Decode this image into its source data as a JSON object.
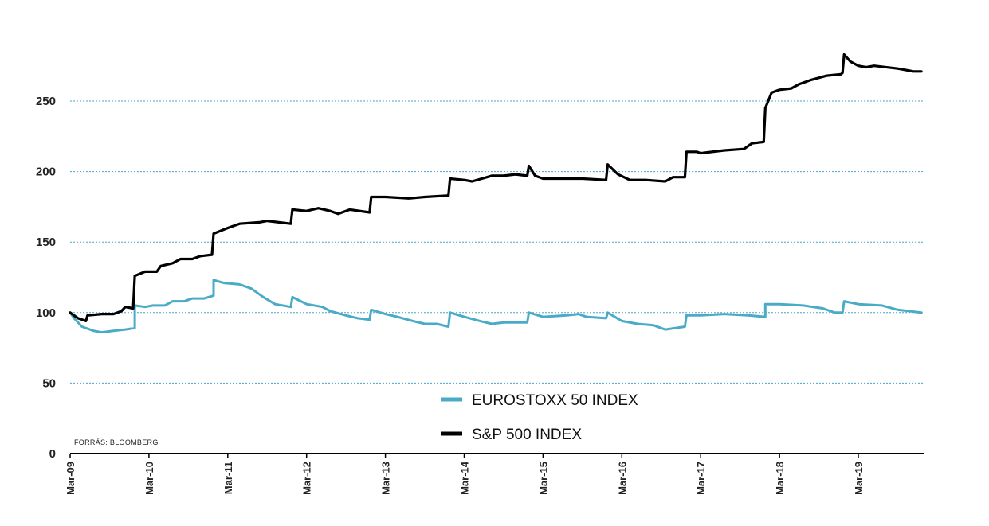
{
  "chart_data": {
    "type": "line",
    "title": "",
    "xlabel": "",
    "ylabel": "",
    "source": "FORRÁS: BLOOMBERG",
    "ylim": [
      0,
      290
    ],
    "yticks": [
      0,
      50,
      100,
      150,
      200,
      250
    ],
    "xlim": [
      2009.0,
      2019.85
    ],
    "xticks": [
      {
        "label": "Mar-09",
        "x": 2009.0
      },
      {
        "label": "Mar-10",
        "x": 2010.0
      },
      {
        "label": "Mar-11",
        "x": 2011.0
      },
      {
        "label": "Mar-12",
        "x": 2012.0
      },
      {
        "label": "Mar-13",
        "x": 2013.0
      },
      {
        "label": "Mar-14",
        "x": 2014.0
      },
      {
        "label": "Mar-15",
        "x": 2015.0
      },
      {
        "label": "Mar-16",
        "x": 2016.0
      },
      {
        "label": "Mar-17",
        "x": 2017.0
      },
      {
        "label": "Mar-18",
        "x": 2018.0
      },
      {
        "label": "Mar-19",
        "x": 2019.0
      }
    ],
    "grid": "horizontal-dotted",
    "legend_position": "bottom-center",
    "series": [
      {
        "name": "EUROSTOXX 50 INDEX",
        "color": "#4aabc7",
        "points": [
          [
            2009.0,
            100
          ],
          [
            2009.05,
            96
          ],
          [
            2009.15,
            90
          ],
          [
            2009.3,
            87
          ],
          [
            2009.4,
            86
          ],
          [
            2009.55,
            87
          ],
          [
            2009.7,
            88
          ],
          [
            2009.82,
            89
          ],
          [
            2009.82,
            105
          ],
          [
            2009.95,
            104
          ],
          [
            2010.05,
            105
          ],
          [
            2010.2,
            105
          ],
          [
            2010.3,
            108
          ],
          [
            2010.45,
            108
          ],
          [
            2010.55,
            110
          ],
          [
            2010.7,
            110
          ],
          [
            2010.82,
            112
          ],
          [
            2010.82,
            123
          ],
          [
            2010.95,
            121
          ],
          [
            2011.15,
            120
          ],
          [
            2011.3,
            117
          ],
          [
            2011.45,
            111
          ],
          [
            2011.6,
            106
          ],
          [
            2011.8,
            104
          ],
          [
            2011.82,
            111
          ],
          [
            2012.0,
            106
          ],
          [
            2012.2,
            104
          ],
          [
            2012.3,
            101
          ],
          [
            2012.5,
            98
          ],
          [
            2012.65,
            96
          ],
          [
            2012.8,
            95
          ],
          [
            2012.82,
            102
          ],
          [
            2013.0,
            99
          ],
          [
            2013.15,
            97
          ],
          [
            2013.35,
            94
          ],
          [
            2013.5,
            92
          ],
          [
            2013.65,
            92
          ],
          [
            2013.8,
            90
          ],
          [
            2013.82,
            100
          ],
          [
            2014.0,
            97
          ],
          [
            2014.2,
            94
          ],
          [
            2014.35,
            92
          ],
          [
            2014.5,
            93
          ],
          [
            2014.8,
            93
          ],
          [
            2014.82,
            100
          ],
          [
            2015.0,
            97
          ],
          [
            2015.3,
            98
          ],
          [
            2015.45,
            99
          ],
          [
            2015.55,
            97
          ],
          [
            2015.8,
            96
          ],
          [
            2015.82,
            100
          ],
          [
            2016.0,
            94
          ],
          [
            2016.2,
            92
          ],
          [
            2016.4,
            91
          ],
          [
            2016.55,
            88
          ],
          [
            2016.8,
            90
          ],
          [
            2016.82,
            98
          ],
          [
            2017.0,
            98
          ],
          [
            2017.3,
            99
          ],
          [
            2017.6,
            98
          ],
          [
            2017.82,
            97
          ],
          [
            2017.82,
            106
          ],
          [
            2018.0,
            106
          ],
          [
            2018.3,
            105
          ],
          [
            2018.55,
            103
          ],
          [
            2018.7,
            100
          ],
          [
            2018.8,
            100
          ],
          [
            2018.82,
            108
          ],
          [
            2019.0,
            106
          ],
          [
            2019.3,
            105
          ],
          [
            2019.5,
            102
          ],
          [
            2019.65,
            101
          ],
          [
            2019.8,
            100
          ]
        ]
      },
      {
        "name": "S&P 500 INDEX",
        "color": "#000000",
        "points": [
          [
            2009.0,
            100
          ],
          [
            2009.1,
            96
          ],
          [
            2009.2,
            94
          ],
          [
            2009.22,
            98
          ],
          [
            2009.4,
            99
          ],
          [
            2009.55,
            99
          ],
          [
            2009.65,
            101
          ],
          [
            2009.7,
            104
          ],
          [
            2009.8,
            103
          ],
          [
            2009.82,
            126
          ],
          [
            2009.95,
            129
          ],
          [
            2010.1,
            129
          ],
          [
            2010.15,
            133
          ],
          [
            2010.3,
            135
          ],
          [
            2010.4,
            138
          ],
          [
            2010.55,
            138
          ],
          [
            2010.65,
            140
          ],
          [
            2010.8,
            141
          ],
          [
            2010.82,
            156
          ],
          [
            2011.0,
            160
          ],
          [
            2011.15,
            163
          ],
          [
            2011.4,
            164
          ],
          [
            2011.5,
            165
          ],
          [
            2011.8,
            163
          ],
          [
            2011.82,
            173
          ],
          [
            2012.0,
            172
          ],
          [
            2012.15,
            174
          ],
          [
            2012.3,
            172
          ],
          [
            2012.4,
            170
          ],
          [
            2012.55,
            173
          ],
          [
            2012.8,
            171
          ],
          [
            2012.82,
            182
          ],
          [
            2013.0,
            182
          ],
          [
            2013.3,
            181
          ],
          [
            2013.5,
            182
          ],
          [
            2013.8,
            183
          ],
          [
            2013.82,
            195
          ],
          [
            2014.0,
            194
          ],
          [
            2014.1,
            193
          ],
          [
            2014.35,
            197
          ],
          [
            2014.5,
            197
          ],
          [
            2014.65,
            198
          ],
          [
            2014.8,
            197
          ],
          [
            2014.82,
            204
          ],
          [
            2014.9,
            197
          ],
          [
            2015.0,
            195
          ],
          [
            2015.3,
            195
          ],
          [
            2015.5,
            195
          ],
          [
            2015.8,
            194
          ],
          [
            2015.82,
            205
          ],
          [
            2015.95,
            198
          ],
          [
            2016.1,
            194
          ],
          [
            2016.3,
            194
          ],
          [
            2016.55,
            193
          ],
          [
            2016.65,
            196
          ],
          [
            2016.8,
            196
          ],
          [
            2016.82,
            214
          ],
          [
            2016.95,
            214
          ],
          [
            2017.0,
            213
          ],
          [
            2017.3,
            215
          ],
          [
            2017.55,
            216
          ],
          [
            2017.65,
            220
          ],
          [
            2017.8,
            221
          ],
          [
            2017.82,
            245
          ],
          [
            2017.9,
            256
          ],
          [
            2018.0,
            258
          ],
          [
            2018.15,
            259
          ],
          [
            2018.25,
            262
          ],
          [
            2018.4,
            265
          ],
          [
            2018.6,
            268
          ],
          [
            2018.78,
            269
          ],
          [
            2018.8,
            270
          ],
          [
            2018.82,
            283
          ],
          [
            2018.9,
            278
          ],
          [
            2019.0,
            275
          ],
          [
            2019.1,
            274
          ],
          [
            2019.2,
            275
          ],
          [
            2019.5,
            273
          ],
          [
            2019.7,
            271
          ],
          [
            2019.8,
            271
          ]
        ]
      }
    ]
  }
}
